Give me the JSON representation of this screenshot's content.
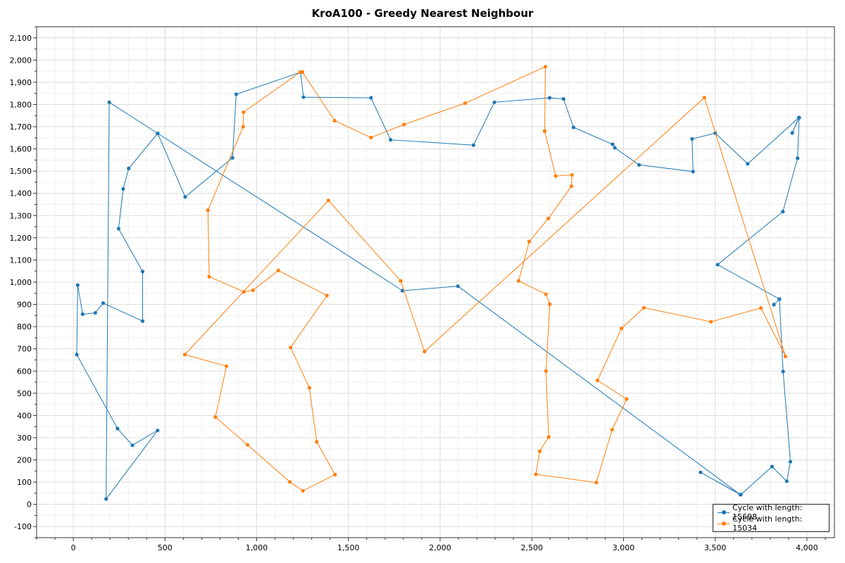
{
  "chart_data": {
    "type": "line",
    "title": "KroA100 - Greedy Nearest Neighbour",
    "xlabel": "",
    "ylabel": "",
    "xlim": [
      -200,
      4150
    ],
    "ylim": [
      -150,
      2150
    ],
    "xticks": [
      0,
      500,
      1000,
      1500,
      2000,
      2500,
      3000,
      3500,
      4000
    ],
    "xtick_labels": [
      "0",
      "500",
      "1,000",
      "1,500",
      "2,000",
      "2,500",
      "3,000",
      "3,500",
      "4,000"
    ],
    "yticks": [
      -100,
      0,
      100,
      200,
      300,
      400,
      500,
      600,
      700,
      800,
      900,
      1000,
      1100,
      1200,
      1300,
      1400,
      1500,
      1600,
      1700,
      1800,
      1900,
      2000,
      2100
    ],
    "ytick_labels": [
      "-100",
      "0",
      "100",
      "200",
      "300",
      "400",
      "500",
      "600",
      "700",
      "800",
      "900",
      "1,000",
      "1,100",
      "1,200",
      "1,300",
      "1,400",
      "1,500",
      "1,600",
      "1,700",
      "1,800",
      "1,900",
      "2,000",
      "2,100"
    ],
    "grid": true,
    "legend_position": "bottom-right",
    "series": [
      {
        "name": "Cycle with length: 15698",
        "color": "#1f77b4",
        "points": [
          [
            1795,
            962
          ],
          [
            2097,
            982
          ],
          [
            3637,
            44
          ],
          [
            3420,
            144
          ],
          [
            3640,
            44
          ],
          [
            3810,
            170
          ],
          [
            3890,
            104
          ],
          [
            3910,
            192
          ],
          [
            3870,
            598
          ],
          [
            3850,
            924
          ],
          [
            3820,
            899
          ],
          [
            3850,
            924
          ],
          [
            3513,
            1079
          ],
          [
            3869,
            1318
          ],
          [
            3949,
            1558
          ],
          [
            3958,
            1741
          ],
          [
            3920,
            1672
          ],
          [
            3956,
            1741
          ],
          [
            3677,
            1533
          ],
          [
            3500,
            1671
          ],
          [
            3374,
            1645
          ],
          [
            3379,
            1498
          ],
          [
            3085,
            1528
          ],
          [
            2953,
            1605
          ],
          [
            2940,
            1621
          ],
          [
            2727,
            1697
          ],
          [
            2673,
            1825
          ],
          [
            2597,
            1830
          ],
          [
            2296,
            1810
          ],
          [
            2182,
            1617
          ],
          [
            1730,
            1641
          ],
          [
            1623,
            1830
          ],
          [
            1255,
            1833
          ],
          [
            1239,
            1945
          ],
          [
            888,
            1846
          ],
          [
            868,
            1560
          ],
          [
            610,
            1384
          ],
          [
            460,
            1670
          ],
          [
            302,
            1512
          ],
          [
            272,
            1420
          ],
          [
            247,
            1241
          ],
          [
            378,
            1048
          ],
          [
            378,
            825
          ],
          [
            163,
            906
          ],
          [
            120,
            862
          ],
          [
            51,
            856
          ],
          [
            24,
            987
          ],
          [
            19,
            674
          ],
          [
            241,
            341
          ],
          [
            322,
            266
          ],
          [
            460,
            333
          ],
          [
            179,
            24
          ],
          [
            196,
            1810
          ],
          [
            460,
            1670
          ],
          [
            1795,
            962
          ]
        ]
      },
      {
        "name": "Cycle with length: 15034",
        "color": "#ff7f0e",
        "points": [
          [
            2570,
            1680
          ],
          [
            2630,
            1478
          ],
          [
            2719,
            1483
          ],
          [
            2716,
            1432
          ],
          [
            2590,
            1287
          ],
          [
            2486,
            1183
          ],
          [
            2428,
            1006
          ],
          [
            2577,
            946
          ],
          [
            2598,
            901
          ],
          [
            2577,
            600
          ],
          [
            2592,
            303
          ],
          [
            2543,
            239
          ],
          [
            2522,
            135
          ],
          [
            2852,
            98
          ],
          [
            2938,
            336
          ],
          [
            3017,
            474
          ],
          [
            2858,
            558
          ],
          [
            2989,
            792
          ],
          [
            3111,
            885
          ],
          [
            3477,
            822
          ],
          [
            3749,
            884
          ],
          [
            3883,
            666
          ],
          [
            3441,
            1831
          ],
          [
            1915,
            688
          ],
          [
            1785,
            1006
          ],
          [
            1391,
            1368
          ],
          [
            608,
            674
          ],
          [
            835,
            622
          ],
          [
            775,
            393
          ],
          [
            950,
            268
          ],
          [
            1181,
            101
          ],
          [
            1252,
            61
          ],
          [
            1427,
            134
          ],
          [
            1327,
            282
          ],
          [
            1287,
            525
          ],
          [
            1185,
            706
          ],
          [
            1383,
            940
          ],
          [
            1118,
            1053
          ],
          [
            980,
            964
          ],
          [
            930,
            957
          ],
          [
            741,
            1025
          ],
          [
            734,
            1324
          ],
          [
            926,
            1700
          ],
          [
            928,
            1765
          ],
          [
            1238,
            1946
          ],
          [
            1249,
            1946
          ],
          [
            1425,
            1727
          ],
          [
            1623,
            1651
          ],
          [
            1803,
            1710
          ],
          [
            2137,
            1806
          ],
          [
            2574,
            1970
          ],
          [
            2570,
            1680
          ]
        ]
      }
    ]
  }
}
